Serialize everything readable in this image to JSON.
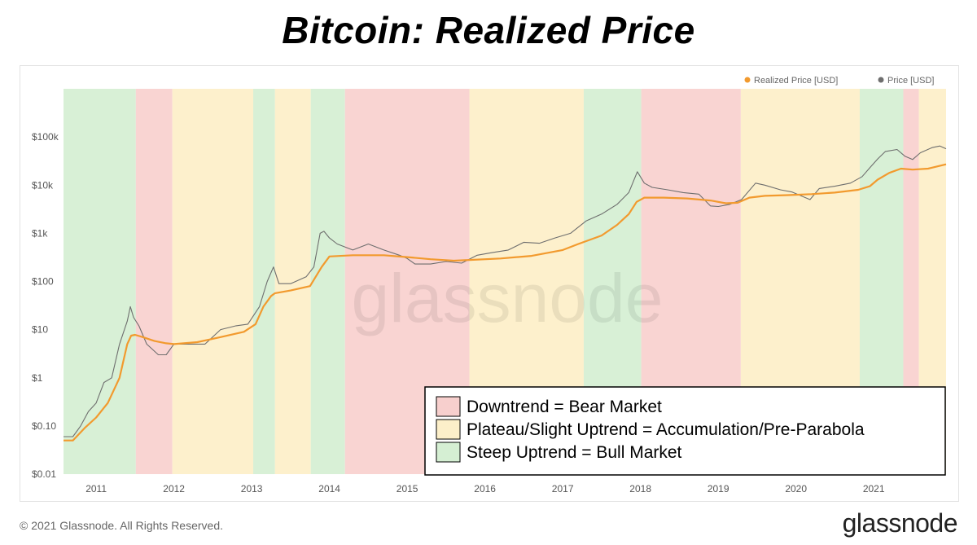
{
  "title": "Bitcoin: Realized Price",
  "footer": {
    "copyright": "© 2021 Glassnode. All Rights Reserved.",
    "brand": "glassnode"
  },
  "watermark": "glassnode",
  "colors": {
    "bear": "#f9d4d2",
    "accumulation": "#fdf0cc",
    "bull": "#d8f0d6",
    "realized": "#f29a2e",
    "price": "#6e6e6e"
  },
  "key": [
    {
      "label": "Downtrend = Bear Market",
      "color": "#f7cfcd"
    },
    {
      "label": "Plateau/Slight Uptrend = Accumulation/Pre-Parabola",
      "color": "#fcefc9"
    },
    {
      "label": "Steep Uptrend = Bull Market",
      "color": "#d5efd3"
    }
  ],
  "chart_data": {
    "type": "line",
    "y_scale": "log",
    "ylim": [
      0.01,
      1000000
    ],
    "xlim": [
      2010.58,
      2021.93
    ],
    "y_ticks": [
      {
        "value": 0.01,
        "label": "$0.01"
      },
      {
        "value": 0.1,
        "label": "$0.10"
      },
      {
        "value": 1,
        "label": "$1"
      },
      {
        "value": 10,
        "label": "$10"
      },
      {
        "value": 100,
        "label": "$100"
      },
      {
        "value": 1000,
        "label": "$1k"
      },
      {
        "value": 10000,
        "label": "$10k"
      },
      {
        "value": 100000,
        "label": "$100k"
      }
    ],
    "x_ticks": [
      "2011",
      "2012",
      "2013",
      "2014",
      "2015",
      "2016",
      "2017",
      "2018",
      "2019",
      "2020",
      "2021"
    ],
    "legend": [
      {
        "name": "Realized Price [USD]",
        "color": "#f29a2e"
      },
      {
        "name": "Price [USD]",
        "color": "#6e6e6e"
      }
    ],
    "legend_position": "top-right",
    "regimes": [
      {
        "start": 2010.58,
        "end": 2011.51,
        "phase": "bull"
      },
      {
        "start": 2011.51,
        "end": 2011.98,
        "phase": "bear"
      },
      {
        "start": 2011.98,
        "end": 2013.02,
        "phase": "accumulation"
      },
      {
        "start": 2013.02,
        "end": 2013.3,
        "phase": "bull"
      },
      {
        "start": 2013.3,
        "end": 2013.76,
        "phase": "accumulation"
      },
      {
        "start": 2013.76,
        "end": 2014.2,
        "phase": "bull"
      },
      {
        "start": 2014.2,
        "end": 2015.8,
        "phase": "bear"
      },
      {
        "start": 2015.8,
        "end": 2017.27,
        "phase": "accumulation"
      },
      {
        "start": 2017.27,
        "end": 2018.01,
        "phase": "bull"
      },
      {
        "start": 2018.01,
        "end": 2019.29,
        "phase": "bear"
      },
      {
        "start": 2019.29,
        "end": 2020.82,
        "phase": "accumulation"
      },
      {
        "start": 2020.82,
        "end": 2021.38,
        "phase": "bull"
      },
      {
        "start": 2021.38,
        "end": 2021.58,
        "phase": "bear"
      },
      {
        "start": 2021.58,
        "end": 2021.93,
        "phase": "accumulation"
      }
    ],
    "series": [
      {
        "name": "Realized Price [USD]",
        "x": [
          2010.58,
          2010.7,
          2010.85,
          2011.0,
          2011.15,
          2011.3,
          2011.4,
          2011.45,
          2011.5,
          2011.6,
          2011.75,
          2011.9,
          2012.0,
          2012.3,
          2012.6,
          2012.9,
          2013.05,
          2013.15,
          2013.25,
          2013.3,
          2013.5,
          2013.75,
          2013.9,
          2014.0,
          2014.3,
          2014.7,
          2015.0,
          2015.3,
          2015.6,
          2015.8,
          2016.2,
          2016.6,
          2017.0,
          2017.2,
          2017.5,
          2017.7,
          2017.85,
          2017.95,
          2018.05,
          2018.3,
          2018.6,
          2018.9,
          2019.1,
          2019.25,
          2019.4,
          2019.6,
          2019.9,
          2020.2,
          2020.5,
          2020.8,
          2020.95,
          2021.05,
          2021.2,
          2021.35,
          2021.5,
          2021.7,
          2021.93
        ],
        "y": [
          0.05,
          0.05,
          0.09,
          0.15,
          0.3,
          1.0,
          5.0,
          7.5,
          7.8,
          7.0,
          5.8,
          5.2,
          5.0,
          5.5,
          7.0,
          9.0,
          13,
          30,
          50,
          57,
          65,
          80,
          200,
          330,
          350,
          350,
          320,
          290,
          270,
          280,
          300,
          340,
          450,
          600,
          900,
          1500,
          2500,
          4500,
          5500,
          5500,
          5300,
          4800,
          4200,
          4300,
          5500,
          6000,
          6200,
          6500,
          7000,
          8000,
          9500,
          13000,
          18000,
          22000,
          21000,
          22000,
          27000
        ]
      },
      {
        "name": "Price [USD]",
        "x": [
          2010.58,
          2010.7,
          2010.8,
          2010.9,
          2011.0,
          2011.1,
          2011.2,
          2011.3,
          2011.4,
          2011.44,
          2011.48,
          2011.55,
          2011.65,
          2011.8,
          2011.9,
          2012.0,
          2012.2,
          2012.4,
          2012.6,
          2012.8,
          2012.95,
          2013.1,
          2013.2,
          2013.28,
          2013.35,
          2013.5,
          2013.7,
          2013.8,
          2013.88,
          2013.93,
          2014.0,
          2014.1,
          2014.3,
          2014.5,
          2014.7,
          2014.9,
          2015.0,
          2015.1,
          2015.3,
          2015.5,
          2015.7,
          2015.9,
          2016.1,
          2016.3,
          2016.5,
          2016.7,
          2016.9,
          2017.1,
          2017.3,
          2017.5,
          2017.7,
          2017.85,
          2017.96,
          2018.05,
          2018.15,
          2018.35,
          2018.55,
          2018.75,
          2018.9,
          2019.0,
          2019.15,
          2019.3,
          2019.48,
          2019.6,
          2019.8,
          2019.95,
          2020.18,
          2020.3,
          2020.5,
          2020.7,
          2020.85,
          2020.95,
          2021.05,
          2021.15,
          2021.3,
          2021.4,
          2021.5,
          2021.6,
          2021.75,
          2021.85,
          2021.93
        ],
        "y": [
          0.06,
          0.06,
          0.1,
          0.2,
          0.3,
          0.8,
          1.0,
          5,
          15,
          30,
          18,
          12,
          5,
          3,
          3,
          5,
          5,
          5,
          10,
          12,
          13,
          30,
          100,
          200,
          90,
          90,
          125,
          200,
          1000,
          1100,
          800,
          600,
          450,
          600,
          450,
          350,
          300,
          230,
          230,
          260,
          240,
          350,
          400,
          450,
          650,
          620,
          800,
          1000,
          1800,
          2500,
          4000,
          7000,
          19000,
          11000,
          9000,
          8000,
          7000,
          6500,
          3700,
          3600,
          4000,
          5000,
          11000,
          10000,
          8000,
          7200,
          5000,
          8500,
          9500,
          11000,
          15000,
          23000,
          35000,
          50000,
          55000,
          40000,
          34000,
          47000,
          60000,
          65000,
          57000
        ]
      }
    ]
  }
}
